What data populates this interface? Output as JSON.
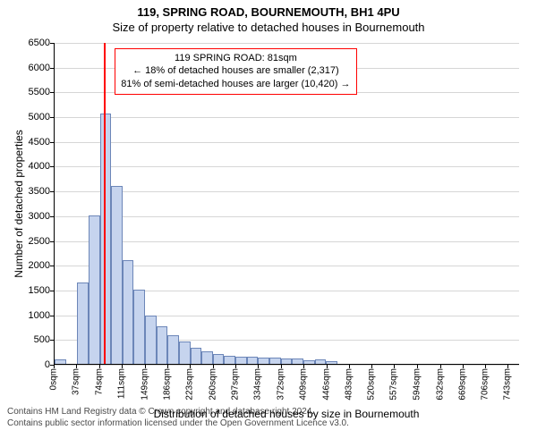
{
  "title_main": "119, SPRING ROAD, BOURNEMOUTH, BH1 4PU",
  "title_sub": "Size of property relative to detached houses in Bournemouth",
  "ylabel": "Number of detached properties",
  "xlabel": "Distribution of detached houses by size in Bournemouth",
  "footer_line1": "Contains HM Land Registry data © Crown copyright and database right 2024.",
  "footer_line2": "Contains public sector information licensed under the Open Government Licence v3.0.",
  "chart": {
    "type": "histogram",
    "background_color": "#ffffff",
    "grid_color": "#d6d6d6",
    "bar_fill": "#c6d4ee",
    "bar_stroke": "#6c86b8",
    "marker_color": "#ff0000",
    "callout_border": "#ff0000",
    "text_color": "#000000",
    "title_fontsize": 13,
    "label_fontsize": 12,
    "tick_fontsize": 11,
    "xtick_fontsize": 10,
    "ylim": [
      0,
      6500
    ],
    "ytick_step": 500,
    "yticks": [
      0,
      500,
      1000,
      1500,
      2000,
      2500,
      3000,
      3500,
      4000,
      4500,
      5000,
      5500,
      6000,
      6500
    ],
    "xlim": [
      0,
      761.5
    ],
    "xtick_step": 37,
    "xticks": [
      0,
      37,
      74,
      111,
      149,
      186,
      223,
      260,
      297,
      334,
      372,
      409,
      446,
      483,
      520,
      557,
      594,
      632,
      669,
      706,
      743
    ],
    "xtick_unit": "sqm",
    "bin_width": 18.5,
    "bar_values": [
      90,
      0,
      1650,
      3000,
      5050,
      3600,
      2100,
      1500,
      980,
      760,
      570,
      460,
      320,
      260,
      200,
      170,
      150,
      140,
      120,
      125,
      110,
      100,
      80,
      90,
      60,
      0,
      0,
      0,
      0,
      0,
      0,
      0,
      0,
      0,
      0,
      0,
      0,
      0,
      0,
      0,
      0
    ],
    "marker_x": 81,
    "callout": {
      "line1": "119 SPRING ROAD: 81sqm",
      "line2": "← 18% of detached houses are smaller (2,317)",
      "line3": "81% of semi-detached houses are larger (10,420) →"
    }
  }
}
